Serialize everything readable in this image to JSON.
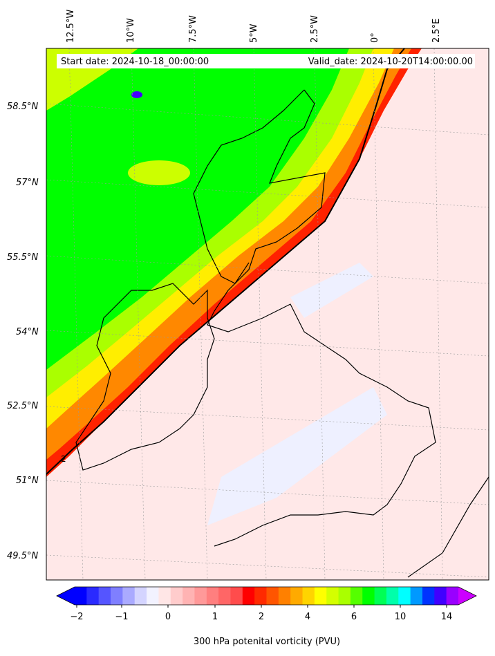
{
  "map": {
    "header": {
      "start_date": "Start date: 2024-10-18_00:00:00",
      "valid_date": "Valid_date: 2024-10-20T14:00:00.00"
    },
    "longitude_labels": [
      "12.5°W",
      "10°W",
      "7.5°W",
      "5°W",
      "2.5°W",
      "0°",
      "2.5°E"
    ],
    "latitude_labels": [
      "58.5°N",
      "57°N",
      "55.5°N",
      "54°N",
      "52.5°N",
      "51°N",
      "49.5°N"
    ],
    "contour_label": "2",
    "colorbar": {
      "label": "300 hPa potenital vorticity (PVU)",
      "ticks": [
        "−2",
        "−1",
        "0",
        "1",
        "2",
        "4",
        "6",
        "10",
        "14"
      ],
      "colors": [
        "#0000ff",
        "#2a2aff",
        "#5555ff",
        "#7f7fff",
        "#aaaaff",
        "#d4d4ff",
        "#f2f2ff",
        "#ffe6e6",
        "#ffcccc",
        "#ffb3b3",
        "#ff9999",
        "#ff7f7f",
        "#ff6666",
        "#ff4c4c",
        "#ff0000",
        "#ff2a00",
        "#ff5500",
        "#ff8000",
        "#ffaa00",
        "#ffd400",
        "#ffff00",
        "#d4ff00",
        "#aaff00",
        "#55ff00",
        "#00ff00",
        "#00ff55",
        "#00ffaa",
        "#00ffff",
        "#0099ff",
        "#0033ff",
        "#4000ff",
        "#9900ff"
      ],
      "over_color": "#cc00ff",
      "under_color": "#0000ff"
    },
    "fill_colors": {
      "low": "#ffe8e8",
      "neg": "#eef0ff",
      "band_red": "#ff0000",
      "band_orange": "#ff8800",
      "band_yellow": "#ffee00",
      "band_lime": "#aaff00",
      "high": "#00ff00"
    }
  }
}
